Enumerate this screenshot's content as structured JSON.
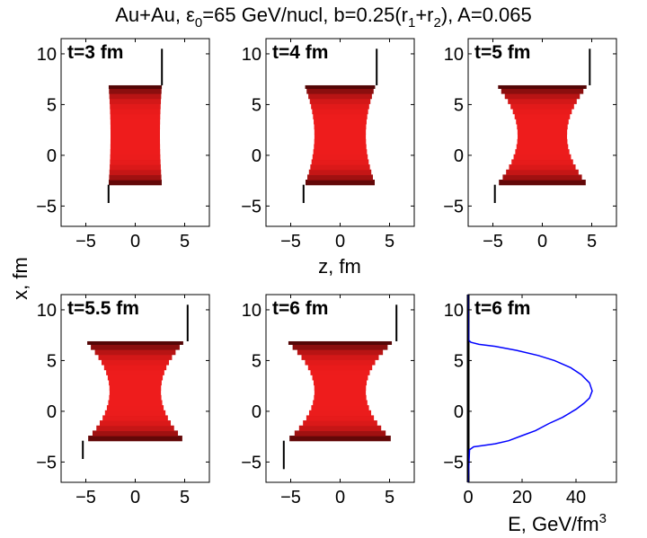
{
  "figure_title": {
    "prefix": "Au+Au, ε",
    "sub": "0",
    "mid": "=65 GeV/nucl, b=0.25(r",
    "sub1": "1",
    "plus": "+r",
    "sub2": "2",
    "suffix": "), A=0.065"
  },
  "ylabel_shared": "x, fm",
  "xlabel_top_middle": "z, fm",
  "xlabel_energy": {
    "text": "E, GeV/fm",
    "sup": "3"
  },
  "colors": {
    "shade_bright": "#ee1c1c",
    "shade_dark": "#3a0202",
    "profile_line": "#0000ff"
  },
  "chart_data": [
    {
      "type": "heatmap",
      "title": "t=3 fm",
      "xlim": [
        -7.5,
        7.5
      ],
      "ylim": [
        -7,
        11.5
      ],
      "xticks": [
        -5,
        0,
        5
      ],
      "yticks": [
        -5,
        0,
        5,
        10
      ],
      "xlabel": "",
      "ylabel": "",
      "profile": {
        "z_top": [
          -2.7,
          2.7
        ],
        "z_mid": [
          -2.5,
          2.5
        ],
        "x_top": 6.9,
        "x_bottom": -2.9
      },
      "lines": [
        {
          "z": 2.7,
          "x": [
            6.9,
            10.5
          ]
        },
        {
          "z": -2.7,
          "x": [
            -2.9,
            -4.7
          ]
        }
      ]
    },
    {
      "type": "heatmap",
      "title": "t=4 fm",
      "xlim": [
        -7.5,
        7.5
      ],
      "ylim": [
        -7,
        11.5
      ],
      "xticks": [
        -5,
        0,
        5
      ],
      "yticks": [
        -5,
        0,
        5,
        10
      ],
      "xlabel": "z, fm",
      "ylabel": "",
      "profile": {
        "z_top": [
          -3.6,
          3.6
        ],
        "z_mid": [
          -2.6,
          2.6
        ],
        "x_top": 6.9,
        "x_bottom": -2.9
      },
      "lines": [
        {
          "z": 3.7,
          "x": [
            6.9,
            10.5
          ]
        },
        {
          "z": -3.7,
          "x": [
            -2.9,
            -4.7
          ]
        }
      ]
    },
    {
      "type": "heatmap",
      "title": "t=5 fm",
      "xlim": [
        -7.5,
        7.5
      ],
      "ylim": [
        -7,
        11.5
      ],
      "xticks": [
        -5,
        0,
        5
      ],
      "yticks": [
        -5,
        0,
        5,
        10
      ],
      "xlabel": "",
      "ylabel": "",
      "profile": {
        "z_top": [
          -4.6,
          4.6
        ],
        "z_mid": [
          -2.5,
          2.5
        ],
        "x_top": 6.9,
        "x_bottom": -2.9
      },
      "lines": [
        {
          "z": 4.8,
          "x": [
            6.9,
            10.5
          ]
        },
        {
          "z": -4.8,
          "x": [
            -2.9,
            -4.7
          ]
        }
      ]
    },
    {
      "type": "heatmap",
      "title": "t=5.5 fm",
      "xlim": [
        -7.5,
        7.5
      ],
      "ylim": [
        -7,
        11.5
      ],
      "xticks": [
        -5,
        0,
        5
      ],
      "yticks": [
        -5,
        0,
        5,
        10
      ],
      "xlabel": "",
      "ylabel": "",
      "profile": {
        "z_top": [
          -5.0,
          5.0
        ],
        "z_mid": [
          -2.6,
          2.6
        ],
        "x_top": 6.9,
        "x_bottom": -2.9
      },
      "lines": [
        {
          "z": 5.3,
          "x": [
            6.9,
            10.5
          ]
        },
        {
          "z": -5.3,
          "x": [
            -2.9,
            -4.7
          ]
        }
      ]
    },
    {
      "type": "heatmap",
      "title": "t=6 fm",
      "xlim": [
        -7.5,
        7.5
      ],
      "ylim": [
        -7,
        11.5
      ],
      "xticks": [
        -5,
        0,
        5
      ],
      "yticks": [
        -5,
        0,
        5,
        10
      ],
      "xlabel": "",
      "ylabel": "",
      "profile": {
        "z_top": [
          -5.4,
          5.4
        ],
        "z_mid": [
          -2.6,
          2.6
        ],
        "x_top": 6.9,
        "x_bottom": -2.9
      },
      "lines": [
        {
          "z": 5.7,
          "x": [
            6.9,
            10.5
          ]
        },
        {
          "z": -5.7,
          "x": [
            -2.9,
            -5.7
          ]
        }
      ]
    },
    {
      "type": "line",
      "title": "t=6 fm",
      "xlim": [
        0,
        55
      ],
      "ylim": [
        -7,
        11.5
      ],
      "xticks": [
        0,
        20,
        40
      ],
      "yticks": [
        -5,
        0,
        5,
        10
      ],
      "xlabel": "E, GeV/fm³",
      "ylabel": "",
      "series": [
        {
          "x": [
            0,
            0.5,
            2,
            5,
            10,
            15,
            20,
            25,
            30,
            35,
            40,
            43,
            45,
            46,
            45,
            42,
            38,
            32,
            26,
            18,
            10,
            4,
            1,
            0.2,
            0
          ],
          "y": [
            -7,
            -3.8,
            -3.5,
            -3.4,
            -3.2,
            -2.9,
            -2.4,
            -1.9,
            -1.2,
            -0.6,
            0.2,
            0.8,
            1.3,
            2.0,
            2.8,
            3.6,
            4.3,
            5.0,
            5.5,
            6.0,
            6.4,
            6.6,
            6.8,
            7.0,
            11.5
          ]
        }
      ],
      "axis_line": {
        "x": 0,
        "y": [
          -7,
          11.5
        ]
      }
    }
  ]
}
